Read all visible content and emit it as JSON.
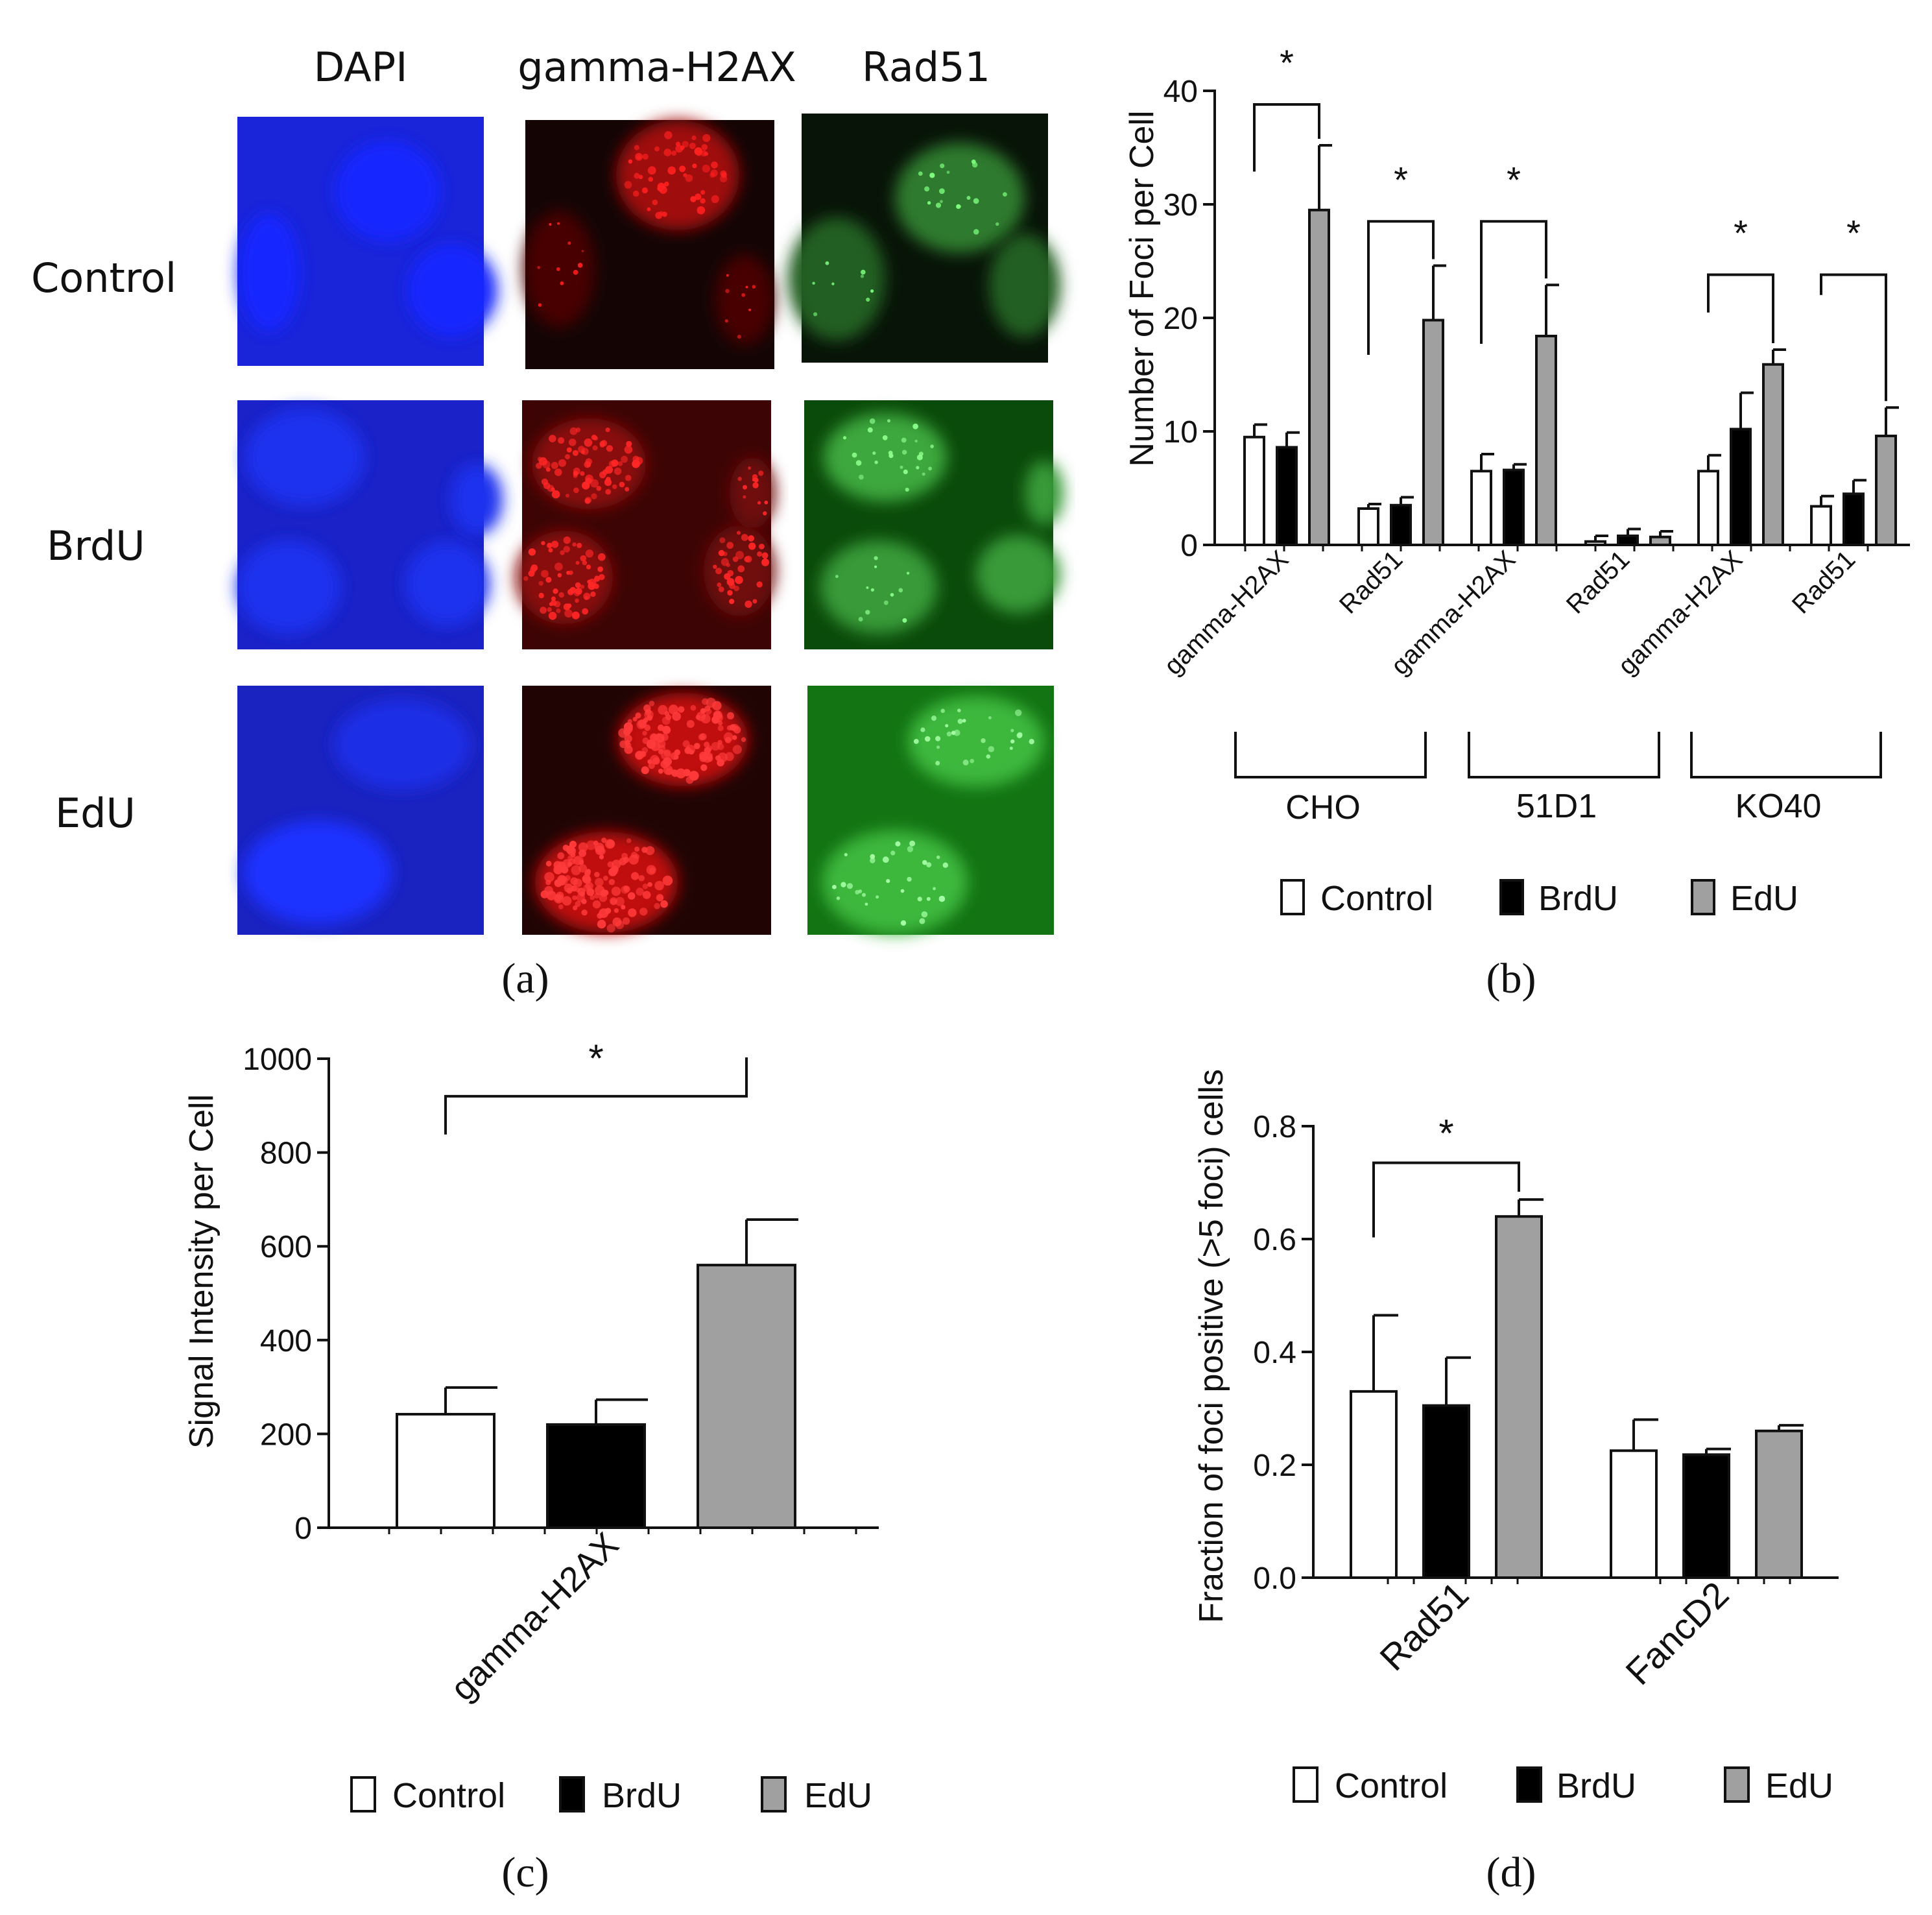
{
  "panel_a": {
    "col_labels": [
      "DAPI",
      "gamma-H2AX",
      "Rad51"
    ],
    "row_labels": [
      "Control",
      "BrdU",
      "EdU"
    ],
    "panel_label": "(a)",
    "channel_colors": {
      "DAPI": "#0a14e6",
      "gamma-H2AX": "#ff1a1a",
      "Rad51": "#3cd23c"
    }
  },
  "legend": {
    "items": [
      {
        "label": "Control",
        "color": "#ffffff"
      },
      {
        "label": "BrdU",
        "color": "#000000"
      },
      {
        "label": "EdU",
        "color": "#a0a0a0"
      }
    ]
  },
  "chart_data": [
    {
      "panel": "(b)",
      "type": "bar",
      "ylabel": "Number of Foci per Cell",
      "ylim": [
        0,
        40
      ],
      "yticks": [
        "0",
        "10",
        "20",
        "30",
        "40"
      ],
      "categories": [
        "gamma-H2AX",
        "Rad51",
        "gamma-H2AX",
        "Rad51",
        "gamma-H2AX",
        "Rad51"
      ],
      "groups": [
        "CHO",
        "51D1",
        "KO40"
      ],
      "series": [
        {
          "name": "Control",
          "values": [
            9.5,
            3.2,
            6.5,
            0.3,
            6.5,
            3.4
          ],
          "errors": [
            1.1,
            0.4,
            1.5,
            0.5,
            1.4,
            0.9
          ]
        },
        {
          "name": "BrdU",
          "values": [
            8.6,
            3.5,
            6.6,
            0.8,
            10.2,
            4.5
          ],
          "errors": [
            1.3,
            0.7,
            0.5,
            0.6,
            3.2,
            1.2
          ]
        },
        {
          "name": "EdU",
          "values": [
            29.5,
            19.8,
            18.4,
            0.7,
            15.9,
            9.6
          ],
          "errors": [
            5.7,
            4.8,
            4.5,
            0.5,
            1.3,
            2.5
          ]
        }
      ],
      "significance": [
        "*",
        "*",
        "*",
        "*",
        "*"
      ]
    },
    {
      "panel": "(c)",
      "type": "bar",
      "ylabel": "Signal Intensity per Cell",
      "ylim": [
        0,
        1000
      ],
      "yticks": [
        "0",
        "200",
        "400",
        "600",
        "800",
        "1000"
      ],
      "categories": [
        "gamma-H2AX"
      ],
      "series": [
        {
          "name": "Control",
          "values": [
            242
          ],
          "errors": [
            57
          ]
        },
        {
          "name": "BrdU",
          "values": [
            220
          ],
          "errors": [
            53
          ]
        },
        {
          "name": "EdU",
          "values": [
            560
          ],
          "errors": [
            97
          ]
        }
      ],
      "significance": [
        "*"
      ]
    },
    {
      "panel": "(d)",
      "type": "bar",
      "ylabel": "Fraction of foci positive (>5 foci) cells",
      "ylim": [
        0,
        0.8
      ],
      "yticks": [
        "0.0",
        "0.2",
        "0.4",
        "0.6",
        "0.8"
      ],
      "categories": [
        "Rad51",
        "FancD2"
      ],
      "series": [
        {
          "name": "Control",
          "values": [
            0.33,
            0.225
          ],
          "errors": [
            0.135,
            0.055
          ]
        },
        {
          "name": "BrdU",
          "values": [
            0.305,
            0.218
          ],
          "errors": [
            0.085,
            0.01
          ]
        },
        {
          "name": "EdU",
          "values": [
            0.64,
            0.26
          ],
          "errors": [
            0.03,
            0.01
          ]
        }
      ],
      "significance": [
        "*"
      ]
    }
  ]
}
